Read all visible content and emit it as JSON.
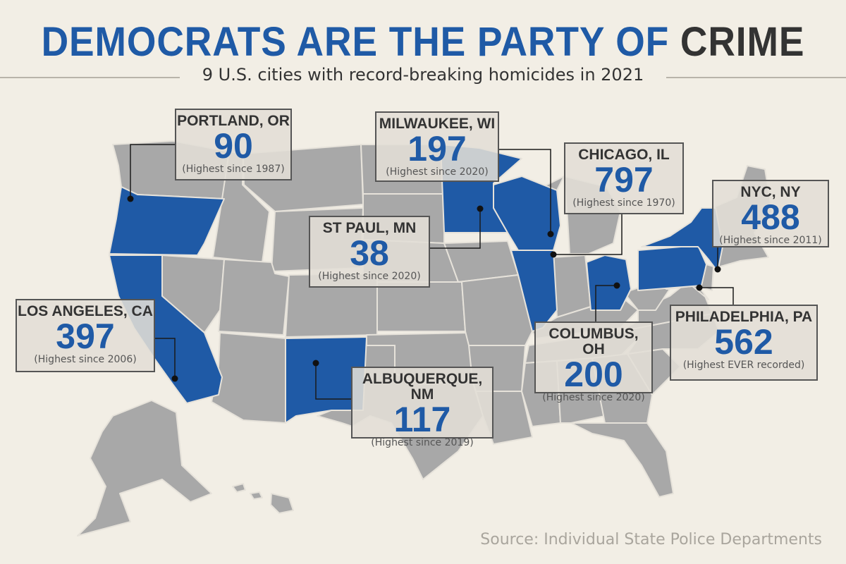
{
  "header": {
    "title_main": "DEMOCRATS ARE THE PARTY OF ",
    "title_emphasis": "CRIME",
    "subtitle": "9 U.S. cities with record-breaking homicides in 2021"
  },
  "colors": {
    "background": "#f2eee5",
    "highlight_state": "#1f5aa6",
    "other_state": "#a8a8a8",
    "title_blue": "#1f5aa6",
    "dark_text": "#333333"
  },
  "cities": [
    {
      "id": "portland",
      "name": "PORTLAND, OR",
      "homicides": "90",
      "note": "(Highest since 1987)"
    },
    {
      "id": "milwaukee",
      "name": "MILWAUKEE, WI",
      "homicides": "197",
      "note": "(Highest since 2020)"
    },
    {
      "id": "chicago",
      "name": "CHICAGO, IL",
      "homicides": "797",
      "note": "(Highest since 1970)"
    },
    {
      "id": "nyc",
      "name": "NYC, NY",
      "homicides": "488",
      "note": "(Highest since 2011)"
    },
    {
      "id": "stpaul",
      "name": "ST PAUL, MN",
      "homicides": "38",
      "note": "(Highest since 2020)"
    },
    {
      "id": "losangeles",
      "name": "LOS ANGELES, CA",
      "homicides": "397",
      "note": "(Highest since 2006)"
    },
    {
      "id": "albuquerque",
      "name": "ALBUQUERQUE, NM",
      "homicides": "117",
      "note": "(Highest since 2019)"
    },
    {
      "id": "columbus",
      "name": "COLUMBUS, OH",
      "homicides": "200",
      "note": "(Highest since 2020)"
    },
    {
      "id": "philadelphia",
      "name": "PHILADELPHIA, PA",
      "homicides": "562",
      "note": "(Highest EVER recorded)"
    }
  ],
  "highlighted_states": [
    "Oregon",
    "California",
    "New Mexico",
    "Minnesota",
    "Wisconsin",
    "Illinois",
    "Ohio",
    "Pennsylvania",
    "New York"
  ],
  "footer": {
    "source": "Source: Individual State Police Departments"
  }
}
